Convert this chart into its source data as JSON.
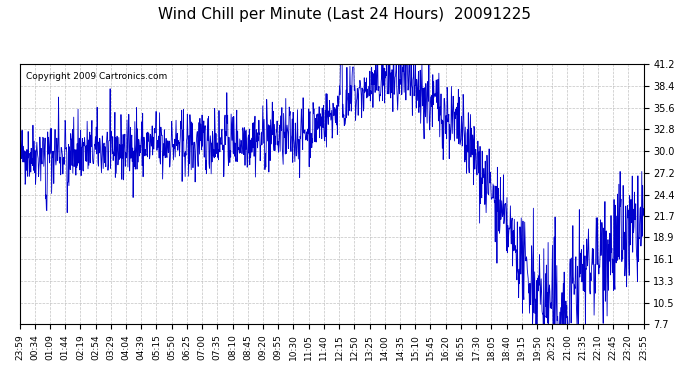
{
  "title": "Wind Chill per Minute (Last 24 Hours)  20091225",
  "copyright": "Copyright 2009 Cartronics.com",
  "line_color": "#0000CC",
  "background_color": "#ffffff",
  "plot_bg_color": "#ffffff",
  "grid_color": "#aaaaaa",
  "ylim": [
    7.7,
    41.2
  ],
  "yticks": [
    7.7,
    10.5,
    13.3,
    16.1,
    18.9,
    21.7,
    24.4,
    27.2,
    30.0,
    32.8,
    35.6,
    38.4,
    41.2
  ],
  "xtick_labels": [
    "23:59",
    "00:34",
    "01:09",
    "01:44",
    "02:19",
    "02:54",
    "03:29",
    "04:04",
    "04:39",
    "05:15",
    "05:50",
    "06:25",
    "07:00",
    "07:35",
    "08:10",
    "08:45",
    "09:20",
    "09:55",
    "10:30",
    "11:05",
    "11:40",
    "12:15",
    "12:50",
    "13:25",
    "14:00",
    "14:35",
    "15:10",
    "15:45",
    "16:20",
    "16:55",
    "17:30",
    "18:05",
    "18:40",
    "19:15",
    "19:50",
    "20:25",
    "21:00",
    "21:35",
    "22:10",
    "22:45",
    "23:20",
    "23:55"
  ]
}
